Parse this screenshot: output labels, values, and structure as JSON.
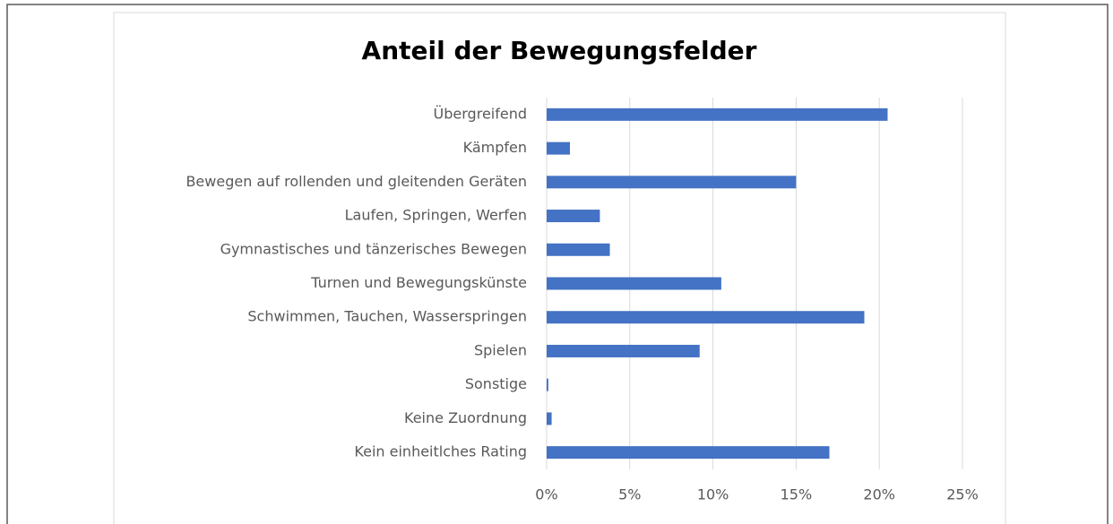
{
  "chart_data": {
    "type": "bar",
    "orientation": "horizontal",
    "title": "Anteil der Bewegungsfelder",
    "categories": [
      "Übergreifend",
      "Kämpfen",
      "Bewegen auf rollenden und gleitenden Geräten",
      "Laufen, Springen, Werfen",
      "Gymnastisches und tänzerisches Bewegen",
      "Turnen und Bewegungskünste",
      "Schwimmen, Tauchen, Wasserspringen",
      "Spielen",
      "Sonstige",
      "Keine Zuordnung",
      "Kein einheitlches Rating"
    ],
    "values": [
      20.5,
      1.4,
      15.0,
      3.2,
      3.8,
      10.5,
      19.1,
      9.2,
      0.1,
      0.3,
      17.0
    ],
    "color": "#4472c4",
    "xlim": [
      0,
      25
    ],
    "xticks": [
      {
        "value": 0,
        "label": "0%"
      },
      {
        "value": 5,
        "label": "5%"
      },
      {
        "value": 10,
        "label": "10%"
      },
      {
        "value": 15,
        "label": "15%"
      },
      {
        "value": 20,
        "label": "20%"
      },
      {
        "value": 25,
        "label": "25%"
      }
    ],
    "grid": true
  }
}
